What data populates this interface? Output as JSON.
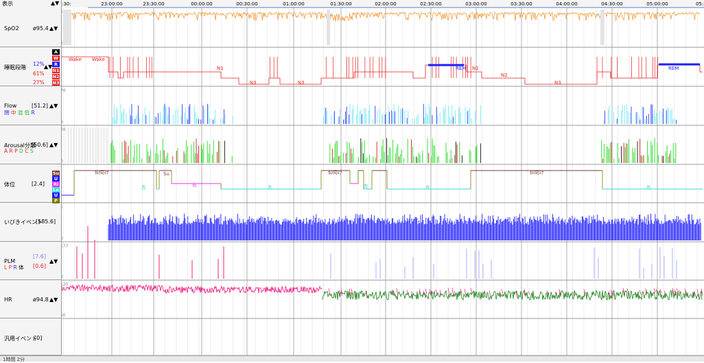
{
  "toolbar": {
    "display_label": "表示",
    "arrows": "▲▼"
  },
  "time_axis": [
    "23:00:00",
    "23:30:00",
    "00:00:00",
    "00:30:00",
    "01:00:00",
    "01:30:00",
    "02:00:00",
    "02:30:00",
    "03:00:00",
    "03:30:00",
    "04:00:00",
    "04:30:00",
    "05:00:00"
  ],
  "time_axis_left_fragment": ":30:",
  "time_axis_right_fragment": "05:3",
  "channels": {
    "spo2": {
      "name": "SpO2",
      "value": "ø95.4",
      "arrows": "▲▼",
      "scale_top": "100",
      "scale_bottom": "70",
      "color": "#f08c1e"
    },
    "stage": {
      "name": "睡眠段階",
      "arrows": "▲▼",
      "labels": [
        "A",
        "W",
        "R",
        "N1",
        "N2",
        "N3"
      ],
      "label_colors": [
        "#000000",
        "#e82020",
        "#1e1eff",
        "#e82020",
        "#e82020",
        "#e82020"
      ],
      "pcts": [
        {
          "text": "12%",
          "color": "#1e1eff"
        },
        {
          "text": "61%",
          "color": "#e82020"
        },
        {
          "text": "27%",
          "color": "#e82020"
        }
      ],
      "annotations": [
        "Wake",
        "Wake",
        "N1",
        "N3",
        "N3",
        "REM",
        "N1",
        "N2",
        "N3",
        "REM"
      ]
    },
    "flow": {
      "name": "Flow",
      "value": "[51.2]",
      "arrows": "▲▼",
      "scale_top": "76",
      "scale_bottom": "0",
      "legend": [
        {
          "text": "閉",
          "color": "#1e1eff"
        },
        {
          "text": "中",
          "color": "#e82020"
        },
        {
          "text": "混",
          "color": "#22bb22"
        },
        {
          "text": "低",
          "color": "#22bb22"
        },
        {
          "text": "R",
          "color": "#1e1eff"
        }
      ]
    },
    "arousal": {
      "name": "Arousal分類",
      "value": "[50.6]",
      "arrows": "▲▼",
      "scale_top": "28",
      "scale_bottom": "0",
      "legend": [
        {
          "text": "A",
          "color": "#e82020"
        },
        {
          "text": "R",
          "color": "#e82020"
        },
        {
          "text": "P",
          "color": "#e82020"
        },
        {
          "text": "D",
          "color": "#22bb22"
        },
        {
          "text": "C",
          "color": "#e82020"
        },
        {
          "text": "S",
          "color": "#22bb22"
        }
      ]
    },
    "position": {
      "name": "体位",
      "value": "[2.4]",
      "labels": [
        "Su",
        "U",
        "Ri",
        "Le",
        "U",
        "P"
      ],
      "label_colors": [
        "#7a3e3e",
        "#1e1eff",
        "#ee33ee",
        "#33dddd",
        "#1e1eff",
        "#7a7a00"
      ],
      "annotations": [
        "仰向け",
        "Su",
        "左",
        "右",
        "左",
        "仰向け",
        "左",
        "左",
        "仰向け",
        "左"
      ]
    },
    "snore": {
      "name": "いびきイベント",
      "value": "[585.6]",
      "scale_top": "1",
      "scale_bottom": "0"
    },
    "plm": {
      "name": "PLM",
      "value_top": "[7.6]",
      "value_bottom": "[0.6]",
      "arrows": "▲▼",
      "scale_top": "177",
      "scale_bottom": "0",
      "legend": [
        {
          "text": "L",
          "color": "#e82020"
        },
        {
          "text": "P",
          "color": "#e82020"
        },
        {
          "text": "R",
          "color": "#1e1eff"
        },
        {
          "text": "体",
          "color": "#000000"
        }
      ]
    },
    "hr": {
      "name": "HR",
      "value": "ø94.8",
      "arrows": "▲▼",
      "scale_top": "120",
      "scale_bottom": "50"
    },
    "event": {
      "name": "汎用イベント",
      "value": "[0]"
    }
  },
  "bottom": {
    "text": "1時間  2分"
  }
}
